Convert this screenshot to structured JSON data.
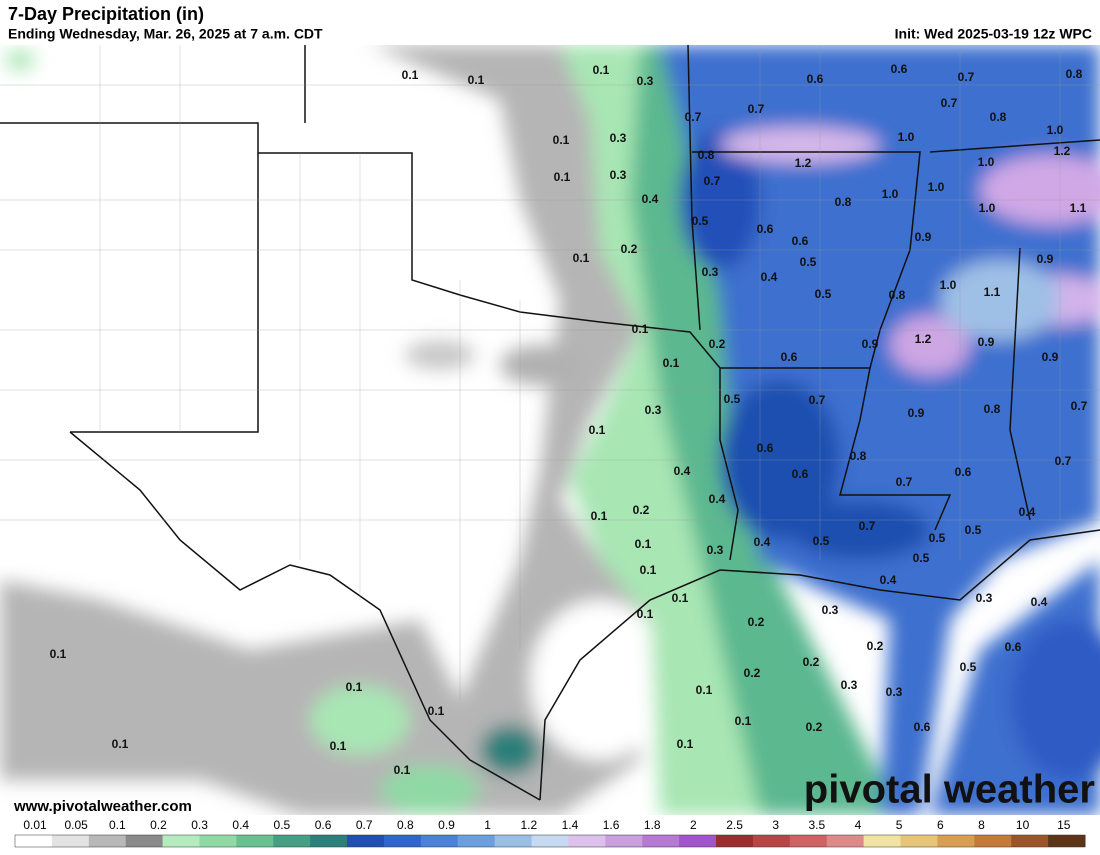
{
  "header": {
    "title": "7-Day Precipitation (in)",
    "subtitle": "Ending Wednesday, Mar. 26, 2025 at 7 a.m. CDT",
    "init": "Init: Wed 2025-03-19 12z WPC"
  },
  "map": {
    "labels": [
      "0.1",
      "0.1",
      "0.1",
      "0.3",
      "0.6",
      "0.6",
      "0.7",
      "0.8",
      "0.7",
      "0.7",
      "0.7",
      "0.8",
      "1.0",
      "0.1",
      "0.3",
      "1.0",
      "1.2",
      "0.8",
      "1.2",
      "1.0",
      "0.1",
      "0.3",
      "0.7",
      "1.0",
      "1.0",
      "0.4",
      "0.8",
      "1.0",
      "1.1",
      "0.5",
      "0.6",
      "0.6",
      "0.9",
      "0.2",
      "0.1",
      "0.5",
      "0.9",
      "0.3",
      "0.4",
      "1.0",
      "1.1",
      "0.5",
      "0.8",
      "0.1",
      "0.2",
      "1.2",
      "0.9",
      "0.9",
      "0.6",
      "0.1",
      "0.9",
      "0.5",
      "0.7",
      "0.3",
      "0.9",
      "0.8",
      "0.7",
      "0.1",
      "0.6",
      "0.8",
      "0.7",
      "0.4",
      "0.6",
      "0.6",
      "0.7",
      "0.4",
      "0.1",
      "0.2",
      "0.4",
      "0.7",
      "0.5",
      "0.5",
      "0.1",
      "0.3",
      "0.4",
      "0.5",
      "0.5",
      "0.1",
      "0.1",
      "0.4",
      "0.1",
      "0.3",
      "0.3",
      "0.4",
      "0.2",
      "0.2",
      "0.6",
      "0.1",
      "0.2",
      "0.5",
      "0.2",
      "0.3",
      "0.3",
      "0.1",
      "0.1",
      "0.1",
      "0.1",
      "0.2",
      "0.6",
      "0.1",
      "0.1",
      "0.1",
      "0.1"
    ]
  },
  "footer": {
    "website": "www.pivotalweather.com",
    "logo": "pivotal weather"
  },
  "legend": {
    "labels": [
      "0.01",
      "0.05",
      "0.1",
      "0.2",
      "0.3",
      "0.4",
      "0.5",
      "0.6",
      "0.7",
      "0.8",
      "0.9",
      "1",
      "1.2",
      "1.4",
      "1.6",
      "1.8",
      "2",
      "2.5",
      "3",
      "3.5",
      "4",
      "5",
      "6",
      "8",
      "10",
      "15"
    ],
    "colors": [
      "#ffffff",
      "#e3e3e3",
      "#b8b8b8",
      "#8a8a8a",
      "#b4ecc0",
      "#8fd9a4",
      "#68c18f",
      "#469f85",
      "#2c7f7a",
      "#1f4fb0",
      "#2f66cc",
      "#4a82d6",
      "#6c9fdd",
      "#9abfe6",
      "#c6d9f0",
      "#dcc1ea",
      "#c99fe0",
      "#b67ad4",
      "#a255c8",
      "#9a2d2d",
      "#b84545",
      "#cc6464",
      "#dc8a8a",
      "#f1e3a2",
      "#e6c47a",
      "#d99e56",
      "#c37a3a",
      "#9a5528",
      "#5c3418"
    ]
  }
}
